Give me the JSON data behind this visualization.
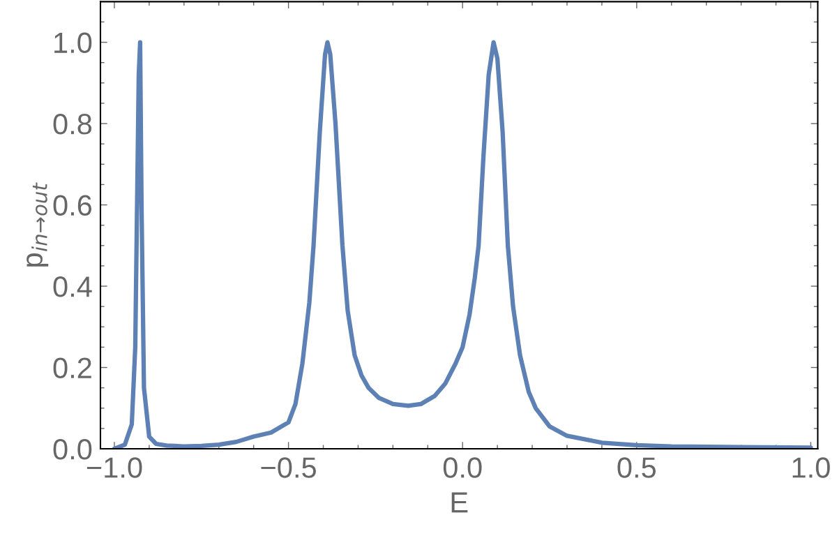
{
  "chart_data": {
    "type": "line",
    "xlabel": "E",
    "ylabel": "p$_{in→out}$",
    "xlim": [
      -1.04,
      1.02
    ],
    "ylim": [
      0,
      1.1
    ],
    "xticks": [
      {
        "value": -1.0,
        "label": "−1.0"
      },
      {
        "value": -0.9,
        "label": null
      },
      {
        "value": -0.8,
        "label": null
      },
      {
        "value": -0.7,
        "label": null
      },
      {
        "value": -0.6,
        "label": null
      },
      {
        "value": -0.5,
        "label": "−0.5"
      },
      {
        "value": -0.4,
        "label": null
      },
      {
        "value": -0.3,
        "label": null
      },
      {
        "value": -0.2,
        "label": null
      },
      {
        "value": -0.1,
        "label": null
      },
      {
        "value": 0.0,
        "label": "0.0"
      },
      {
        "value": 0.1,
        "label": null
      },
      {
        "value": 0.2,
        "label": null
      },
      {
        "value": 0.3,
        "label": null
      },
      {
        "value": 0.4,
        "label": null
      },
      {
        "value": 0.5,
        "label": "0.5"
      },
      {
        "value": 0.6,
        "label": null
      },
      {
        "value": 0.7,
        "label": null
      },
      {
        "value": 0.8,
        "label": null
      },
      {
        "value": 0.9,
        "label": null
      },
      {
        "value": 1.0,
        "label": "1.0"
      }
    ],
    "yticks": [
      {
        "value": 0.0,
        "label": "0.0"
      },
      {
        "value": 0.05,
        "label": null
      },
      {
        "value": 0.1,
        "label": null
      },
      {
        "value": 0.15,
        "label": null
      },
      {
        "value": 0.2,
        "label": "0.2"
      },
      {
        "value": 0.25,
        "label": null
      },
      {
        "value": 0.3,
        "label": null
      },
      {
        "value": 0.35,
        "label": null
      },
      {
        "value": 0.4,
        "label": "0.4"
      },
      {
        "value": 0.45,
        "label": null
      },
      {
        "value": 0.5,
        "label": null
      },
      {
        "value": 0.55,
        "label": null
      },
      {
        "value": 0.6,
        "label": "0.6"
      },
      {
        "value": 0.65,
        "label": null
      },
      {
        "value": 0.7,
        "label": null
      },
      {
        "value": 0.75,
        "label": null
      },
      {
        "value": 0.8,
        "label": "0.8"
      },
      {
        "value": 0.85,
        "label": null
      },
      {
        "value": 0.9,
        "label": null
      },
      {
        "value": 0.95,
        "label": null
      },
      {
        "value": 1.0,
        "label": "1.0"
      },
      {
        "value": 1.05,
        "label": null
      }
    ],
    "grid": false,
    "legend": false,
    "marker": "none",
    "line_style": "solid",
    "series": [
      {
        "color": "#5e81b5",
        "x": [
          -1.0,
          -0.97,
          -0.95,
          -0.94,
          -0.93,
          -0.926,
          -0.922,
          -0.915,
          -0.9,
          -0.88,
          -0.85,
          -0.8,
          -0.75,
          -0.7,
          -0.65,
          -0.6,
          -0.55,
          -0.5,
          -0.48,
          -0.46,
          -0.44,
          -0.428,
          -0.41,
          -0.395,
          -0.388,
          -0.38,
          -0.365,
          -0.345,
          -0.33,
          -0.31,
          -0.29,
          -0.27,
          -0.24,
          -0.2,
          -0.156,
          -0.12,
          -0.08,
          -0.05,
          -0.02,
          0.0,
          0.02,
          0.035,
          0.046,
          0.06,
          0.075,
          0.089,
          0.1,
          0.115,
          0.13,
          0.145,
          0.165,
          0.19,
          0.21,
          0.25,
          0.3,
          0.4,
          0.5,
          0.6,
          0.8,
          1.0
        ],
        "values": [
          0.0,
          0.01,
          0.06,
          0.25,
          0.92,
          1.0,
          0.6,
          0.15,
          0.03,
          0.012,
          0.008,
          0.006,
          0.007,
          0.01,
          0.017,
          0.03,
          0.04,
          0.065,
          0.11,
          0.21,
          0.36,
          0.5,
          0.78,
          0.97,
          1.0,
          0.97,
          0.8,
          0.5,
          0.34,
          0.23,
          0.18,
          0.15,
          0.125,
          0.11,
          0.106,
          0.11,
          0.13,
          0.16,
          0.21,
          0.25,
          0.33,
          0.42,
          0.5,
          0.72,
          0.92,
          1.0,
          0.96,
          0.78,
          0.5,
          0.35,
          0.23,
          0.14,
          0.1,
          0.055,
          0.032,
          0.015,
          0.009,
          0.006,
          0.004,
          0.003
        ]
      }
    ]
  }
}
